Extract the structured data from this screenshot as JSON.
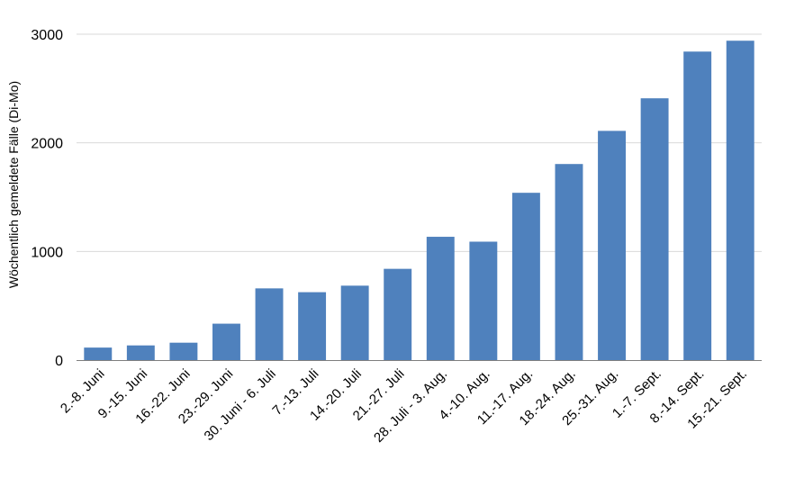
{
  "chart_data": {
    "type": "bar",
    "title": "",
    "xlabel": "",
    "ylabel": "Wöchentlich gemeldete Fälle (Di-Mo)",
    "ylim": [
      0,
      3000
    ],
    "yticks": [
      "0",
      "1000",
      "2000",
      "3000"
    ],
    "grid": true,
    "legend": "none",
    "bar_color": "#4f81bd",
    "categories": [
      "2.-8. Juni",
      "9.-15. Juni",
      "16.-22. Juni",
      "23.-29. Juni",
      "30. Juni - 6. Juli",
      "7.-13. Juli",
      "14.-20. Juli",
      "21.-27. Juli",
      "28. Juli - 3. Aug.",
      "4.-10. Aug.",
      "11.-17. Aug.",
      "18.-24. Aug.",
      "25.-31. Aug.",
      "1.-7. Sept.",
      "8.-14. Sept.",
      "15.-21. Sept."
    ],
    "values": [
      115,
      135,
      160,
      335,
      660,
      625,
      685,
      840,
      1135,
      1090,
      1540,
      1805,
      2110,
      2410,
      2840,
      2940
    ]
  }
}
